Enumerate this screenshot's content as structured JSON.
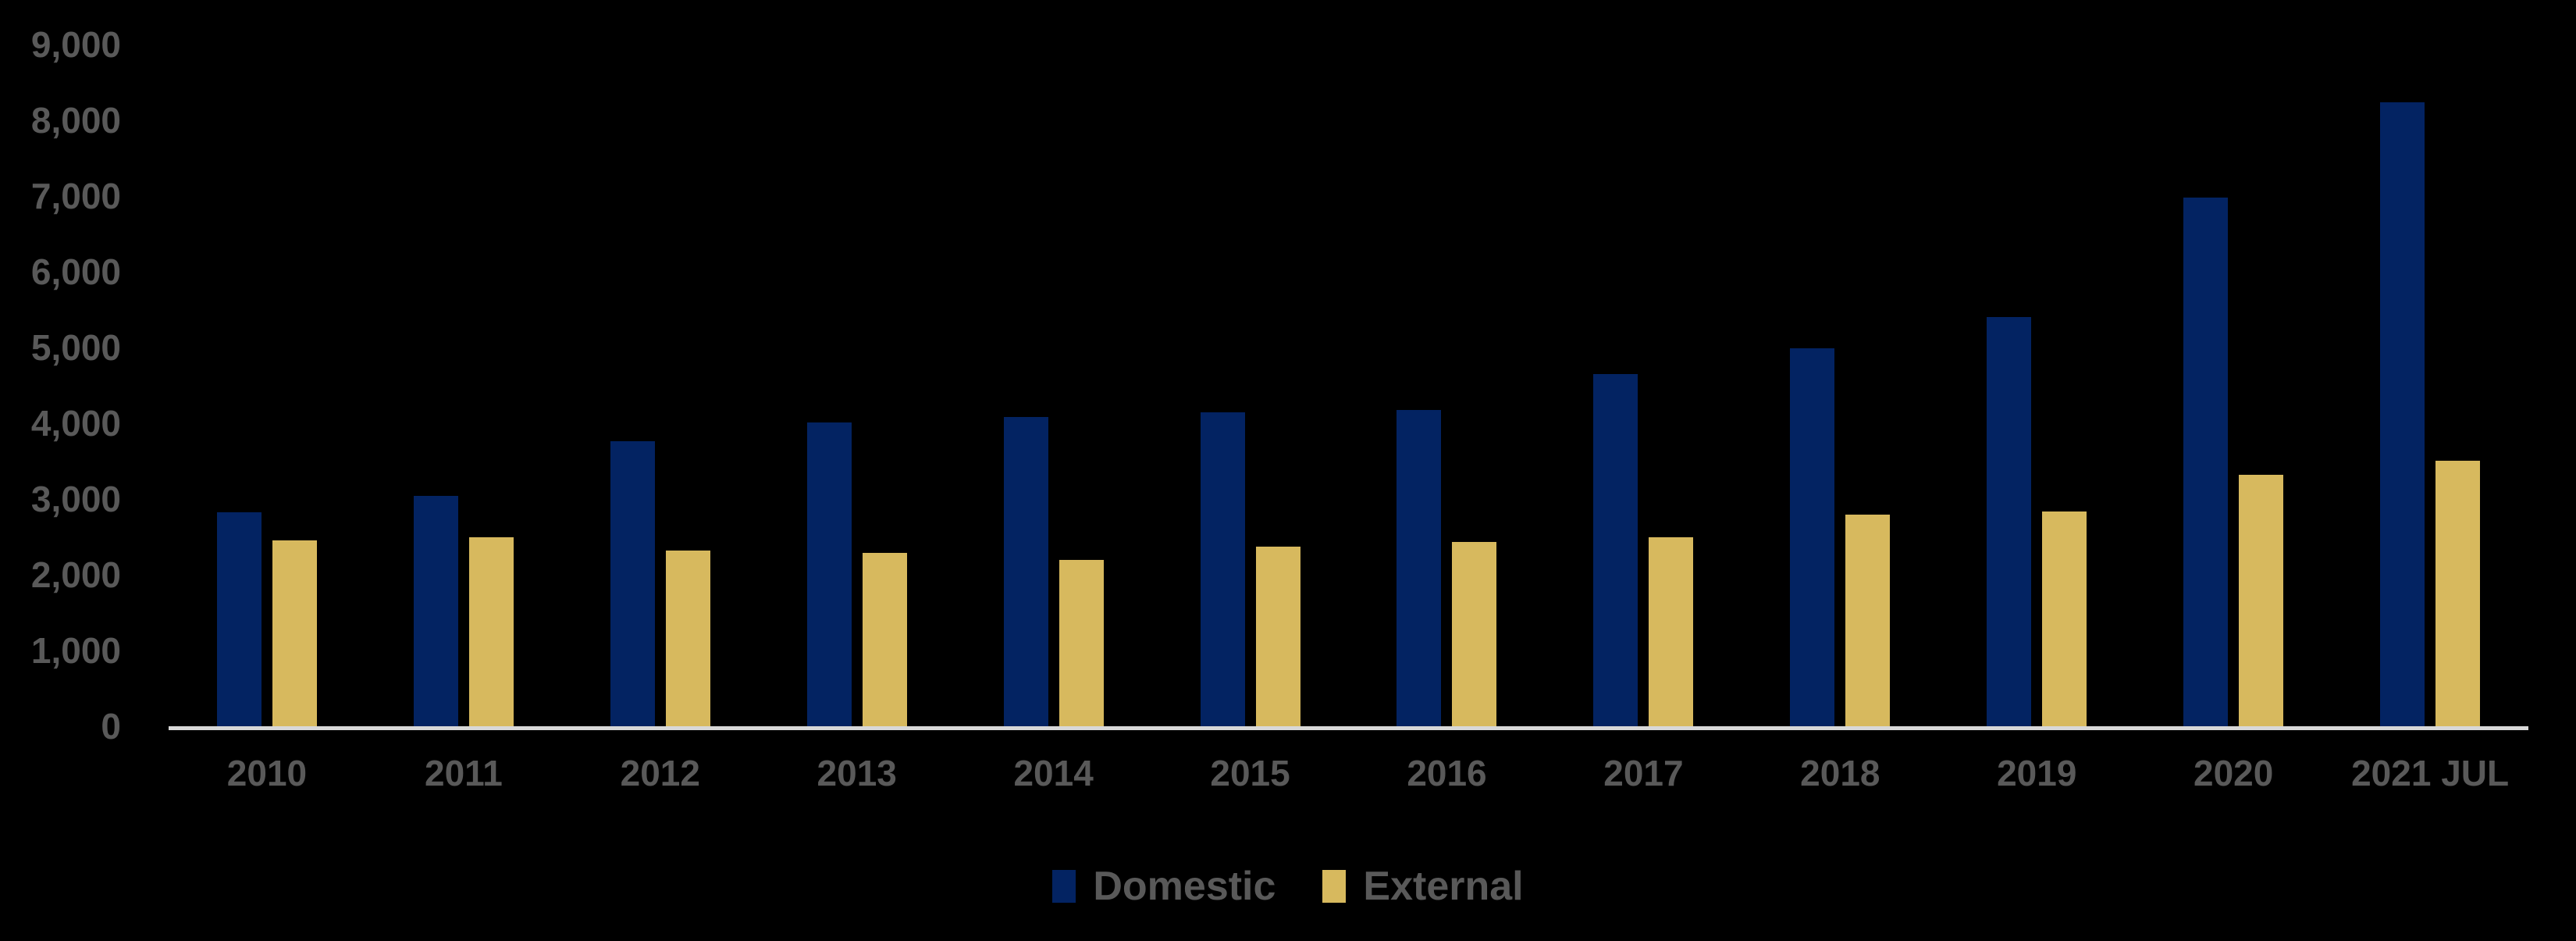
{
  "colors": {
    "background": "#000000",
    "domestic": "#032362",
    "external": "#d7b95e",
    "tick_text": "#595959",
    "axis_line": "#d8d8d8"
  },
  "legend": {
    "items": [
      {
        "label": "Domestic"
      },
      {
        "label": "External"
      }
    ]
  },
  "chart_data": {
    "type": "bar",
    "title": "",
    "xlabel": "",
    "ylabel": "",
    "grid": false,
    "legend_position": "bottom",
    "ylim": [
      0,
      9000
    ],
    "categories": [
      "2010",
      "2011",
      "2012",
      "2013",
      "2014",
      "2015",
      "2016",
      "2017",
      "2018",
      "2019",
      "2020",
      "2021 JUL"
    ],
    "series": [
      {
        "name": "Domestic",
        "color": "#032362",
        "values": [
          2830,
          3040,
          3760,
          4010,
          4080,
          4140,
          4180,
          4650,
          4990,
          5400,
          6980,
          8240
        ]
      },
      {
        "name": "External",
        "color": "#d7b95e",
        "values": [
          2450,
          2500,
          2320,
          2290,
          2200,
          2370,
          2430,
          2500,
          2790,
          2840,
          3320,
          3510
        ]
      }
    ],
    "y_ticks": [
      {
        "value": 0,
        "label": "0"
      },
      {
        "value": 1000,
        "label": "1,000"
      },
      {
        "value": 2000,
        "label": "2,000"
      },
      {
        "value": 3000,
        "label": "3,000"
      },
      {
        "value": 4000,
        "label": "4,000"
      },
      {
        "value": 5000,
        "label": "5,000"
      },
      {
        "value": 6000,
        "label": "6,000"
      },
      {
        "value": 7000,
        "label": "7,000"
      },
      {
        "value": 8000,
        "label": "8,000"
      },
      {
        "value": 9000,
        "label": "9,000"
      }
    ]
  }
}
